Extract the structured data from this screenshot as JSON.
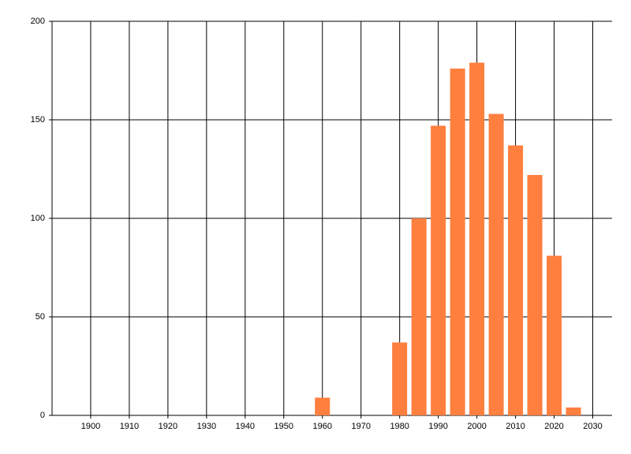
{
  "chart_data": {
    "type": "bar",
    "x": [
      1960,
      1980,
      1985,
      1990,
      1995,
      2000,
      2005,
      2010,
      2015,
      2020,
      2025
    ],
    "values": [
      9,
      37,
      100,
      147,
      176,
      179,
      153,
      137,
      122,
      81,
      4
    ],
    "color": "#ff7f3f",
    "xlim": [
      1890,
      2035
    ],
    "xticks": [
      1900,
      1910,
      1920,
      1930,
      1940,
      1950,
      1960,
      1970,
      1980,
      1990,
      2000,
      2010,
      2020,
      2030
    ],
    "ylim": [
      0,
      200
    ],
    "yticks": [
      0,
      50,
      100,
      150,
      200
    ],
    "grid": true
  }
}
